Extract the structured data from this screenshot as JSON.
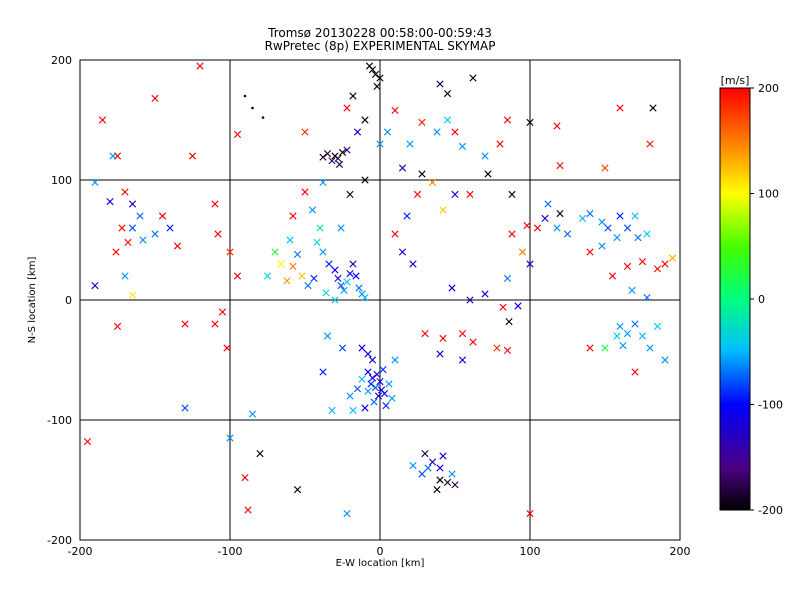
{
  "chart_data": {
    "type": "scatter",
    "title": "Tromsø 20130228 00:58:00-00:59:43",
    "subtitle": "RwPretec (8p) EXPERIMENTAL SKYMAP",
    "xlabel": "E-W location [km]",
    "ylabel": "N-S location [km]",
    "xlim": [
      -200,
      200
    ],
    "ylim": [
      -200,
      200
    ],
    "xticks": [
      "-200",
      "-100",
      "0",
      "100",
      "200"
    ],
    "yticks": [
      "-200",
      "-100",
      "0",
      "100",
      "200"
    ],
    "grid": true,
    "markers": [
      "dot",
      "x"
    ],
    "colorbar": {
      "label": "[m/s]",
      "range": [
        -200,
        200
      ],
      "ticks": [
        "-200",
        "-100",
        "0",
        "100",
        "200"
      ],
      "colormap": "rainbow (black-purple-blue-cyan-green-yellow-red)"
    },
    "points": [
      [
        -30,
        120,
        -200,
        "x"
      ],
      [
        -35,
        122,
        -190,
        "x"
      ],
      [
        -28,
        118,
        -180,
        "x"
      ],
      [
        -25,
        123,
        -200,
        "x"
      ],
      [
        -32,
        116,
        -170,
        "x"
      ],
      [
        -38,
        119,
        -195,
        "x"
      ],
      [
        -22,
        125,
        -150,
        "x"
      ],
      [
        -27,
        113,
        -185,
        "x"
      ],
      [
        -5,
        192,
        -200,
        "x"
      ],
      [
        -3,
        188,
        -200,
        "x"
      ],
      [
        -7,
        195,
        -200,
        "x"
      ],
      [
        0,
        185,
        -190,
        "x"
      ],
      [
        40,
        180,
        -180,
        "x"
      ],
      [
        45,
        172,
        -200,
        "x"
      ],
      [
        62,
        185,
        -190,
        "x"
      ],
      [
        100,
        148,
        -200,
        "x"
      ],
      [
        182,
        160,
        -200,
        "x"
      ],
      [
        -85,
        160,
        -200,
        "dot"
      ],
      [
        -90,
        170,
        -190,
        "dot"
      ],
      [
        -78,
        152,
        -180,
        "dot"
      ],
      [
        -120,
        195,
        200,
        "x"
      ],
      [
        -150,
        168,
        200,
        "x"
      ],
      [
        -185,
        150,
        200,
        "x"
      ],
      [
        -125,
        120,
        200,
        "x"
      ],
      [
        -95,
        138,
        200,
        "x"
      ],
      [
        -50,
        140,
        180,
        "x"
      ],
      [
        -22,
        160,
        200,
        "x"
      ],
      [
        10,
        158,
        200,
        "x"
      ],
      [
        28,
        148,
        190,
        "x"
      ],
      [
        50,
        140,
        200,
        "x"
      ],
      [
        85,
        150,
        200,
        "x"
      ],
      [
        118,
        145,
        200,
        "x"
      ],
      [
        160,
        160,
        200,
        "x"
      ],
      [
        180,
        130,
        190,
        "x"
      ],
      [
        150,
        110,
        170,
        "x"
      ],
      [
        120,
        112,
        200,
        "x"
      ],
      [
        -190,
        98,
        -60,
        "x"
      ],
      [
        -175,
        120,
        200,
        "x"
      ],
      [
        -178,
        120,
        -60,
        "x"
      ],
      [
        -170,
        90,
        200,
        "x"
      ],
      [
        -165,
        60,
        -80,
        "x"
      ],
      [
        -160,
        70,
        -70,
        "x"
      ],
      [
        -158,
        50,
        -60,
        "x"
      ],
      [
        -150,
        55,
        -70,
        "x"
      ],
      [
        -168,
        48,
        200,
        "x"
      ],
      [
        -172,
        60,
        200,
        "x"
      ],
      [
        -176,
        40,
        200,
        "x"
      ],
      [
        -180,
        82,
        -110,
        "x"
      ],
      [
        -165,
        80,
        -120,
        "x"
      ],
      [
        -140,
        60,
        -90,
        "x"
      ],
      [
        -145,
        70,
        200,
        "x"
      ],
      [
        -135,
        45,
        200,
        "x"
      ],
      [
        -170,
        20,
        -60,
        "x"
      ],
      [
        -165,
        4,
        110,
        "x"
      ],
      [
        -190,
        12,
        -110,
        "x"
      ],
      [
        -110,
        80,
        200,
        "x"
      ],
      [
        -108,
        55,
        200,
        "x"
      ],
      [
        -100,
        40,
        180,
        "x"
      ],
      [
        -95,
        20,
        200,
        "x"
      ],
      [
        -105,
        -10,
        200,
        "x"
      ],
      [
        -110,
        -20,
        200,
        "x"
      ],
      [
        -102,
        -40,
        200,
        "x"
      ],
      [
        -130,
        -20,
        200,
        "x"
      ],
      [
        -175,
        -22,
        200,
        "x"
      ],
      [
        -195,
        -118,
        200,
        "x"
      ],
      [
        -40,
        60,
        -20,
        "x"
      ],
      [
        -42,
        48,
        -30,
        "x"
      ],
      [
        -38,
        40,
        -60,
        "x"
      ],
      [
        -34,
        30,
        -90,
        "x"
      ],
      [
        -30,
        25,
        -100,
        "x"
      ],
      [
        -28,
        18,
        -120,
        "x"
      ],
      [
        -26,
        12,
        -80,
        "x"
      ],
      [
        -24,
        8,
        -60,
        "x"
      ],
      [
        -22,
        15,
        -40,
        "x"
      ],
      [
        -20,
        22,
        -110,
        "x"
      ],
      [
        -18,
        30,
        -130,
        "x"
      ],
      [
        -16,
        20,
        -100,
        "x"
      ],
      [
        -14,
        10,
        -70,
        "x"
      ],
      [
        -12,
        5,
        -60,
        "x"
      ],
      [
        -10,
        2,
        -50,
        "x"
      ],
      [
        -48,
        12,
        -70,
        "x"
      ],
      [
        -52,
        20,
        120,
        "x"
      ],
      [
        -58,
        28,
        150,
        "x"
      ],
      [
        -62,
        16,
        140,
        "x"
      ],
      [
        -66,
        30,
        100,
        "x"
      ],
      [
        -44,
        18,
        -90,
        "x"
      ],
      [
        -36,
        6,
        -30,
        "x"
      ],
      [
        -30,
        0,
        -40,
        "x"
      ],
      [
        -8,
        -60,
        -100,
        "x"
      ],
      [
        -5,
        -65,
        -110,
        "x"
      ],
      [
        -2,
        -62,
        -120,
        "x"
      ],
      [
        0,
        -68,
        -100,
        "x"
      ],
      [
        -6,
        -70,
        -90,
        "x"
      ],
      [
        -3,
        -73,
        -80,
        "x"
      ],
      [
        1,
        -75,
        -110,
        "x"
      ],
      [
        -1,
        -80,
        -130,
        "x"
      ],
      [
        3,
        -78,
        -100,
        "x"
      ],
      [
        -4,
        -85,
        -70,
        "x"
      ],
      [
        -8,
        -76,
        -60,
        "x"
      ],
      [
        2,
        -58,
        -90,
        "x"
      ],
      [
        -12,
        -66,
        -50,
        "x"
      ],
      [
        6,
        -70,
        -60,
        "x"
      ],
      [
        -10,
        -90,
        -100,
        "x"
      ],
      [
        -20,
        -80,
        -60,
        "x"
      ],
      [
        -15,
        -74,
        -80,
        "x"
      ],
      [
        4,
        -88,
        -90,
        "x"
      ],
      [
        8,
        -82,
        -60,
        "x"
      ],
      [
        -18,
        -92,
        -50,
        "x"
      ],
      [
        -12,
        -40,
        -110,
        "x"
      ],
      [
        -8,
        -45,
        -100,
        "x"
      ],
      [
        -5,
        -50,
        -120,
        "x"
      ],
      [
        10,
        -50,
        -60,
        "x"
      ],
      [
        -25,
        -40,
        -80,
        "x"
      ],
      [
        -35,
        -30,
        -60,
        "x"
      ],
      [
        -38,
        -60,
        -90,
        "x"
      ],
      [
        -32,
        -92,
        -50,
        "x"
      ],
      [
        40,
        -150,
        -200,
        "x"
      ],
      [
        45,
        -152,
        -190,
        "x"
      ],
      [
        38,
        -158,
        -200,
        "x"
      ],
      [
        50,
        -154,
        -180,
        "x"
      ],
      [
        30,
        -128,
        -180,
        "x"
      ],
      [
        35,
        -135,
        -130,
        "x"
      ],
      [
        42,
        -130,
        -120,
        "x"
      ],
      [
        40,
        -140,
        -110,
        "x"
      ],
      [
        32,
        -140,
        -70,
        "x"
      ],
      [
        28,
        -145,
        -80,
        "x"
      ],
      [
        48,
        -145,
        -60,
        "x"
      ],
      [
        22,
        -138,
        -60,
        "x"
      ],
      [
        -80,
        -128,
        -200,
        "x"
      ],
      [
        -55,
        -158,
        -200,
        "x"
      ],
      [
        -88,
        -175,
        200,
        "x"
      ],
      [
        -90,
        -148,
        200,
        "x"
      ],
      [
        -22,
        -178,
        -60,
        "x"
      ],
      [
        100,
        -178,
        200,
        "x"
      ],
      [
        -100,
        -115,
        -60,
        "x"
      ],
      [
        -130,
        -90,
        -80,
        "x"
      ],
      [
        -85,
        -95,
        -60,
        "x"
      ],
      [
        50,
        88,
        -110,
        "x"
      ],
      [
        42,
        75,
        120,
        "x"
      ],
      [
        60,
        88,
        200,
        "x"
      ],
      [
        72,
        105,
        -200,
        "x"
      ],
      [
        88,
        88,
        -200,
        "x"
      ],
      [
        98,
        62,
        200,
        "x"
      ],
      [
        88,
        55,
        200,
        "x"
      ],
      [
        95,
        40,
        150,
        "x"
      ],
      [
        100,
        30,
        -120,
        "x"
      ],
      [
        85,
        18,
        -70,
        "x"
      ],
      [
        82,
        -6,
        200,
        "x"
      ],
      [
        92,
        -5,
        -100,
        "x"
      ],
      [
        86,
        -18,
        -200,
        "x"
      ],
      [
        105,
        60,
        200,
        "x"
      ],
      [
        110,
        68,
        -110,
        "x"
      ],
      [
        120,
        72,
        -200,
        "x"
      ],
      [
        112,
        80,
        -70,
        "x"
      ],
      [
        118,
        60,
        -60,
        "x"
      ],
      [
        125,
        55,
        -70,
        "x"
      ],
      [
        135,
        68,
        -50,
        "x"
      ],
      [
        140,
        72,
        -70,
        "x"
      ],
      [
        148,
        65,
        -60,
        "x"
      ],
      [
        152,
        60,
        -80,
        "x"
      ],
      [
        158,
        52,
        -60,
        "x"
      ],
      [
        165,
        60,
        -80,
        "x"
      ],
      [
        170,
        70,
        -50,
        "x"
      ],
      [
        172,
        52,
        -70,
        "x"
      ],
      [
        178,
        55,
        -40,
        "x"
      ],
      [
        160,
        70,
        -90,
        "x"
      ],
      [
        148,
        45,
        -60,
        "x"
      ],
      [
        140,
        40,
        200,
        "x"
      ],
      [
        155,
        20,
        200,
        "x"
      ],
      [
        165,
        28,
        200,
        "x"
      ],
      [
        175,
        32,
        200,
        "x"
      ],
      [
        185,
        26,
        200,
        "x"
      ],
      [
        190,
        30,
        200,
        "x"
      ],
      [
        195,
        35,
        130,
        "x"
      ],
      [
        168,
        8,
        -60,
        "x"
      ],
      [
        178,
        2,
        -70,
        "x"
      ],
      [
        160,
        -22,
        -60,
        "x"
      ],
      [
        165,
        -28,
        -60,
        "x"
      ],
      [
        170,
        -20,
        -70,
        "x"
      ],
      [
        175,
        -30,
        -50,
        "x"
      ],
      [
        158,
        -30,
        -40,
        "x"
      ],
      [
        162,
        -38,
        -60,
        "x"
      ],
      [
        150,
        -40,
        20,
        "x"
      ],
      [
        140,
        -40,
        200,
        "x"
      ],
      [
        180,
        -40,
        -60,
        "x"
      ],
      [
        185,
        -22,
        -40,
        "x"
      ],
      [
        170,
        -60,
        200,
        "x"
      ],
      [
        190,
        -50,
        -60,
        "x"
      ],
      [
        30,
        -28,
        200,
        "x"
      ],
      [
        42,
        -32,
        200,
        "x"
      ],
      [
        55,
        -28,
        200,
        "x"
      ],
      [
        62,
        -35,
        200,
        "x"
      ],
      [
        78,
        -40,
        180,
        "x"
      ],
      [
        85,
        -42,
        200,
        "x"
      ],
      [
        40,
        -45,
        -120,
        "x"
      ],
      [
        55,
        -50,
        -110,
        "x"
      ],
      [
        60,
        0,
        -130,
        "x"
      ],
      [
        70,
        5,
        -110,
        "x"
      ],
      [
        48,
        10,
        -100,
        "x"
      ],
      [
        22,
        30,
        -120,
        "x"
      ],
      [
        15,
        40,
        -110,
        "x"
      ],
      [
        10,
        55,
        200,
        "x"
      ],
      [
        18,
        70,
        -90,
        "x"
      ],
      [
        25,
        88,
        200,
        "x"
      ],
      [
        35,
        98,
        150,
        "x"
      ],
      [
        28,
        105,
        -200,
        "x"
      ],
      [
        15,
        110,
        -130,
        "x"
      ],
      [
        -10,
        100,
        -200,
        "x"
      ],
      [
        -20,
        88,
        -190,
        "x"
      ],
      [
        -26,
        60,
        -60,
        "x"
      ],
      [
        -38,
        98,
        -60,
        "x"
      ],
      [
        -50,
        90,
        200,
        "x"
      ],
      [
        -58,
        70,
        200,
        "x"
      ],
      [
        -60,
        50,
        -40,
        "x"
      ],
      [
        -70,
        40,
        30,
        "x"
      ],
      [
        -75,
        20,
        -30,
        "x"
      ],
      [
        -55,
        38,
        -70,
        "x"
      ],
      [
        -45,
        75,
        -60,
        "x"
      ],
      [
        0,
        130,
        -60,
        "x"
      ],
      [
        5,
        140,
        -60,
        "x"
      ],
      [
        -15,
        140,
        -110,
        "x"
      ],
      [
        -10,
        150,
        -200,
        "x"
      ],
      [
        -18,
        170,
        -200,
        "x"
      ],
      [
        -2,
        178,
        -200,
        "x"
      ],
      [
        20,
        130,
        -60,
        "x"
      ],
      [
        38,
        140,
        -60,
        "x"
      ],
      [
        45,
        150,
        -40,
        "x"
      ],
      [
        55,
        128,
        -60,
        "x"
      ],
      [
        80,
        130,
        200,
        "x"
      ],
      [
        70,
        120,
        -60,
        "x"
      ]
    ]
  }
}
